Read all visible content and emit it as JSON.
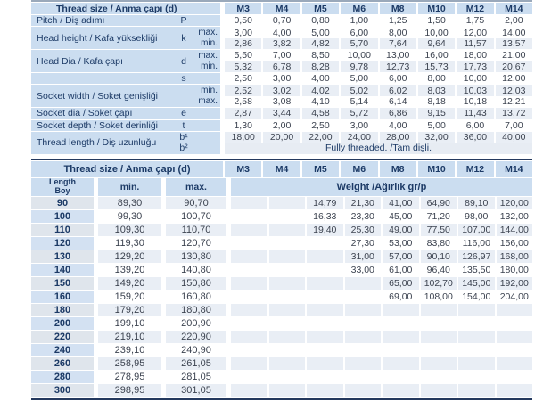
{
  "colors": {
    "header_bg": "#cbddf0",
    "row_stripe": "#e9eef5",
    "row_white": "#ffffff",
    "length_col_odd": "#dfe5ec",
    "length_col_even": "#d3e1f2",
    "label_text": "#1c3a66",
    "value_text": "#3c4350",
    "dark_border": "#24395e"
  },
  "spec_table": {
    "title": "Thread size / Anma çapı (d)",
    "columns": [
      "M3",
      "M4",
      "M5",
      "M6",
      "M8",
      "M10",
      "M12",
      "M14"
    ],
    "sections": [
      {
        "label": "Pitch / Diş adımı",
        "symbol": "P",
        "rows": [
          {
            "qualifier": "",
            "shade": false,
            "values": [
              "0,50",
              "0,70",
              "0,80",
              "1,00",
              "1,25",
              "1,50",
              "1,75",
              "2,00"
            ]
          }
        ]
      },
      {
        "label": "Head height / Kafa yüksekliği",
        "symbol": "k",
        "rows": [
          {
            "qualifier": "max.",
            "shade": false,
            "values": [
              "3,00",
              "4,00",
              "5,00",
              "6,00",
              "8,00",
              "10,00",
              "12,00",
              "14,00"
            ]
          },
          {
            "qualifier": "min.",
            "shade": true,
            "values": [
              "2,86",
              "3,82",
              "4,82",
              "5,70",
              "7,64",
              "9,64",
              "11,57",
              "13,57"
            ]
          }
        ]
      },
      {
        "label": "Head Dia / Kafa çapı",
        "symbol": "d",
        "rows": [
          {
            "qualifier": "max.",
            "shade": false,
            "values": [
              "5,50",
              "7,00",
              "8,50",
              "10,00",
              "13,00",
              "16,00",
              "18,00",
              "21,00"
            ]
          },
          {
            "qualifier": "min.",
            "shade": true,
            "values": [
              "5,32",
              "6,78",
              "8,28",
              "9,78",
              "12,73",
              "15,73",
              "17,73",
              "20,67"
            ]
          }
        ]
      },
      {
        "label": "",
        "symbol": "s",
        "rows": [
          {
            "qualifier": "",
            "shade": false,
            "values": [
              "2,50",
              "3,00",
              "4,00",
              "5,00",
              "6,00",
              "8,00",
              "10,00",
              "12,00"
            ]
          }
        ]
      },
      {
        "label": "Socket width / Soket genişliği",
        "symbol": "",
        "rows": [
          {
            "qualifier": "min.",
            "shade": true,
            "values": [
              "2,52",
              "3,02",
              "4,02",
              "5,02",
              "6,02",
              "8,03",
              "10,03",
              "12,03"
            ]
          },
          {
            "qualifier": "max.",
            "shade": false,
            "values": [
              "2,58",
              "3,08",
              "4,10",
              "5,14",
              "6,14",
              "8,18",
              "10,18",
              "12,21"
            ]
          }
        ]
      },
      {
        "label": "Socket dia / Soket çapı",
        "symbol": "e",
        "rows": [
          {
            "qualifier": "",
            "shade": true,
            "values": [
              "2,87",
              "3,44",
              "4,58",
              "5,72",
              "6,86",
              "9,15",
              "11,43",
              "13,72"
            ]
          }
        ]
      },
      {
        "label": "Socket depth / Soket derinliği",
        "symbol": "t",
        "rows": [
          {
            "qualifier": "",
            "shade": false,
            "values": [
              "1,30",
              "2,00",
              "2,50",
              "3,00",
              "4,00",
              "5,00",
              "6,00",
              "7,00"
            ]
          }
        ]
      },
      {
        "label": "Thread length / Diş uzunluğu",
        "rows": [
          {
            "sym": "b¹",
            "qualifier": "",
            "shade": true,
            "values": [
              "18,00",
              "20,00",
              "22,00",
              "24,00",
              "28,00",
              "32,00",
              "36,00",
              "40,00"
            ]
          },
          {
            "sym": "b²",
            "qualifier": "",
            "shade": false,
            "span_text": "Fully threaded. /Tam dişli."
          }
        ]
      }
    ]
  },
  "weight_table": {
    "title": "Thread size / Anma çapı (d)",
    "columns": [
      "M3",
      "M4",
      "M5",
      "M6",
      "M8",
      "M10",
      "M12",
      "M14"
    ],
    "length_header": "Length",
    "length_header2": "Boy",
    "min_header": "min.",
    "max_header": "max.",
    "weight_header": "Weight /Ağırlık gr/p",
    "rows": [
      {
        "length": "90",
        "min": "89,30",
        "max": "90,70",
        "weights": [
          "",
          "",
          "14,79",
          "21,30",
          "41,00",
          "64,90",
          "89,10",
          "120,00"
        ]
      },
      {
        "length": "100",
        "min": "99,30",
        "max": "100,70",
        "weights": [
          "",
          "",
          "16,33",
          "23,30",
          "45,00",
          "71,20",
          "98,00",
          "132,00"
        ]
      },
      {
        "length": "110",
        "min": "109,30",
        "max": "110,70",
        "weights": [
          "",
          "",
          "19,40",
          "25,30",
          "49,00",
          "77,50",
          "107,00",
          "144,00"
        ]
      },
      {
        "length": "120",
        "min": "119,30",
        "max": "120,70",
        "weights": [
          "",
          "",
          "",
          "27,30",
          "53,00",
          "83,80",
          "116,00",
          "156,00"
        ]
      },
      {
        "length": "130",
        "min": "129,20",
        "max": "130,80",
        "weights": [
          "",
          "",
          "",
          "31,00",
          "57,00",
          "90,10",
          "126,97",
          "168,00"
        ]
      },
      {
        "length": "140",
        "min": "139,20",
        "max": "140,80",
        "weights": [
          "",
          "",
          "",
          "33,00",
          "61,00",
          "96,40",
          "135,50",
          "180,00"
        ]
      },
      {
        "length": "150",
        "min": "149,20",
        "max": "150,80",
        "weights": [
          "",
          "",
          "",
          "",
          "65,00",
          "102,70",
          "145,00",
          "192,00"
        ]
      },
      {
        "length": "160",
        "min": "159,20",
        "max": "160,80",
        "weights": [
          "",
          "",
          "",
          "",
          "69,00",
          "108,00",
          "154,00",
          "204,00"
        ]
      },
      {
        "length": "180",
        "min": "179,20",
        "max": "180,80",
        "weights": [
          "",
          "",
          "",
          "",
          "",
          "",
          "",
          ""
        ]
      },
      {
        "length": "200",
        "min": "199,10",
        "max": "200,90",
        "weights": [
          "",
          "",
          "",
          "",
          "",
          "",
          "",
          ""
        ]
      },
      {
        "length": "220",
        "min": "219,10",
        "max": "220,90",
        "weights": [
          "",
          "",
          "",
          "",
          "",
          "",
          "",
          ""
        ]
      },
      {
        "length": "240",
        "min": "239,10",
        "max": "240,90",
        "weights": [
          "",
          "",
          "",
          "",
          "",
          "",
          "",
          ""
        ]
      },
      {
        "length": "260",
        "min": "258,95",
        "max": "261,05",
        "weights": [
          "",
          "",
          "",
          "",
          "",
          "",
          "",
          ""
        ]
      },
      {
        "length": "280",
        "min": "278,95",
        "max": "281,05",
        "weights": [
          "",
          "",
          "",
          "",
          "",
          "",
          "",
          ""
        ]
      },
      {
        "length": "300",
        "min": "298,95",
        "max": "301,05",
        "weights": [
          "",
          "",
          "",
          "",
          "",
          "",
          "",
          ""
        ]
      }
    ]
  }
}
